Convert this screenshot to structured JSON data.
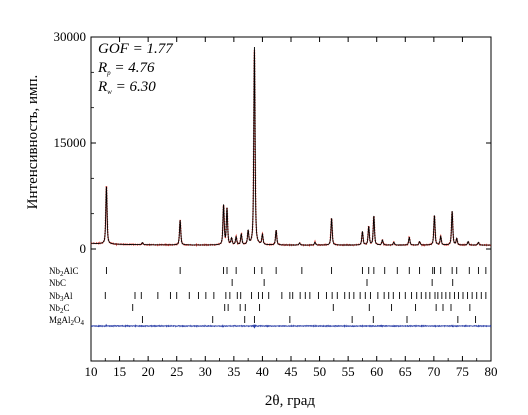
{
  "chart_data": {
    "type": "line",
    "xlabel": "2θ, град",
    "ylabel": "Интенсивность, имп.",
    "xlim": [
      10,
      80
    ],
    "ylim": [
      0,
      30000
    ],
    "x_ticks": [
      10,
      15,
      20,
      25,
      30,
      35,
      40,
      45,
      50,
      55,
      60,
      65,
      70,
      75,
      80
    ],
    "y_ticks": [
      0,
      15000,
      30000
    ],
    "grid": false,
    "colors": {
      "observed": "#e8453c",
      "calculated": "#000000",
      "difference": "#2b3fa8",
      "frame": "#000000"
    },
    "annotations": {
      "gof": {
        "symbol": "GOF",
        "sub": "",
        "value": " = 1.77"
      },
      "rp": {
        "symbol": "R",
        "sub": "p",
        "value": " = 4.76"
      },
      "rw": {
        "symbol": "R",
        "sub": "w",
        "value": " = 6.30"
      }
    },
    "background": 550,
    "peaks": [
      {
        "x": 12.7,
        "y": 8200
      },
      {
        "x": 19.0,
        "y": 300
      },
      {
        "x": 25.6,
        "y": 3500
      },
      {
        "x": 33.2,
        "y": 5600
      },
      {
        "x": 33.8,
        "y": 5100
      },
      {
        "x": 34.6,
        "y": 900
      },
      {
        "x": 35.4,
        "y": 1100
      },
      {
        "x": 36.3,
        "y": 1500
      },
      {
        "x": 37.5,
        "y": 1900
      },
      {
        "x": 38.6,
        "y": 28000
      },
      {
        "x": 40.0,
        "y": 1400
      },
      {
        "x": 42.4,
        "y": 2100
      },
      {
        "x": 46.5,
        "y": 300
      },
      {
        "x": 49.2,
        "y": 400
      },
      {
        "x": 52.1,
        "y": 3800
      },
      {
        "x": 57.5,
        "y": 1900
      },
      {
        "x": 58.6,
        "y": 2600
      },
      {
        "x": 59.5,
        "y": 4100
      },
      {
        "x": 61.0,
        "y": 700
      },
      {
        "x": 63.0,
        "y": 400
      },
      {
        "x": 65.7,
        "y": 1100
      },
      {
        "x": 67.5,
        "y": 500
      },
      {
        "x": 70.1,
        "y": 4200
      },
      {
        "x": 71.2,
        "y": 1200
      },
      {
        "x": 73.2,
        "y": 4800
      },
      {
        "x": 74.0,
        "y": 900
      },
      {
        "x": 76.0,
        "y": 500
      },
      {
        "x": 77.8,
        "y": 400
      }
    ],
    "phases": [
      {
        "name": {
          "pre": "Nb",
          "sub": "2",
          "post": "AlC"
        },
        "reflections": [
          12.7,
          25.6,
          33.2,
          33.8,
          35.4,
          38.6,
          39.9,
          42.4,
          46.9,
          52.1,
          57.5,
          58.6,
          59.5,
          61.4,
          63.6,
          65.7,
          67.5,
          69.8,
          70.1,
          71.2,
          73.2,
          74.0,
          76.2,
          77.8,
          79.1
        ]
      },
      {
        "name": {
          "pre": "NbC",
          "sub": "",
          "post": ""
        },
        "reflections": [
          34.7,
          40.3,
          58.3,
          69.7,
          73.3
        ]
      },
      {
        "name": {
          "pre": "Nb",
          "sub": "3",
          "post": "Al"
        },
        "reflections": [
          12.5,
          17.7,
          18.8,
          21.7,
          23.9,
          25.0,
          27.2,
          28.8,
          30.1,
          31.5,
          33.6,
          34.3,
          35.6,
          36.2,
          38.1,
          39.3,
          40.0,
          41.1,
          43.4,
          44.8,
          45.3,
          46.6,
          47.5,
          48.3,
          49.8,
          51.2,
          52.2,
          53.1,
          54.4,
          55.2,
          56.0,
          57.1,
          58.0,
          58.9,
          60.2,
          61.3,
          62.1,
          62.9,
          64.0,
          65.0,
          66.1,
          67.0,
          67.8,
          68.6,
          69.3,
          70.2,
          70.7,
          71.4,
          72.1,
          72.8,
          73.6,
          74.3,
          75.1,
          75.9,
          76.7,
          77.5,
          78.3,
          79.1
        ]
      },
      {
        "name": {
          "pre": "Nb",
          "sub": "2",
          "post": "C"
        },
        "reflections": [
          17.3,
          33.4,
          34.0,
          36.1,
          37.0,
          39.5,
          52.4,
          58.7,
          62.6,
          66.8,
          70.4,
          71.6,
          73.0,
          76.3
        ]
      },
      {
        "name": {
          "pre": "MgAl",
          "sub": "2",
          "post": "O",
          "sub2": "4"
        },
        "reflections": [
          19.0,
          31.3,
          36.9,
          38.6,
          44.8,
          55.7,
          59.4,
          65.3,
          74.2,
          77.3
        ]
      }
    ]
  }
}
